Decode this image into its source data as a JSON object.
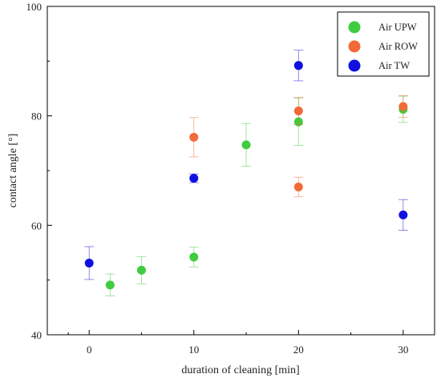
{
  "chart_data": {
    "type": "scatter",
    "xlabel": "duration of cleaning [min]",
    "ylabel": "contact angle [°]",
    "xlim": [
      -4,
      33
    ],
    "ylim": [
      40,
      100
    ],
    "xticks": [
      0,
      10,
      20,
      30
    ],
    "yticks": [
      40,
      60,
      80,
      100
    ],
    "legend_position": "top-right",
    "grid": false,
    "series": [
      {
        "name": "Air UPW",
        "color": "#3fcc3f",
        "points": [
          {
            "x": 2,
            "y": 49.1,
            "err": 2.0
          },
          {
            "x": 5,
            "y": 51.8,
            "err": 2.5
          },
          {
            "x": 10,
            "y": 54.2,
            "err": 1.8
          },
          {
            "x": 15,
            "y": 74.7,
            "err": 3.9
          },
          {
            "x": 20,
            "y": 78.9,
            "err": 4.3
          },
          {
            "x": 30,
            "y": 81.2,
            "err": 2.4
          }
        ]
      },
      {
        "name": "Air ROW",
        "color": "#f26a3a",
        "points": [
          {
            "x": 10,
            "y": 76.1,
            "err": 3.6
          },
          {
            "x": 20,
            "y": 80.9,
            "err": 2.5
          },
          {
            "x": 20,
            "y": 67.0,
            "err": 1.8
          },
          {
            "x": 30,
            "y": 81.7,
            "err": 2.0
          }
        ]
      },
      {
        "name": "Air TW",
        "color": "#1010e0",
        "points": [
          {
            "x": 0,
            "y": 53.1,
            "err": 3.0
          },
          {
            "x": 10,
            "y": 68.6,
            "err": 0.8
          },
          {
            "x": 20,
            "y": 89.2,
            "err": 2.8
          },
          {
            "x": 30,
            "y": 61.9,
            "err": 2.8
          }
        ]
      }
    ]
  }
}
